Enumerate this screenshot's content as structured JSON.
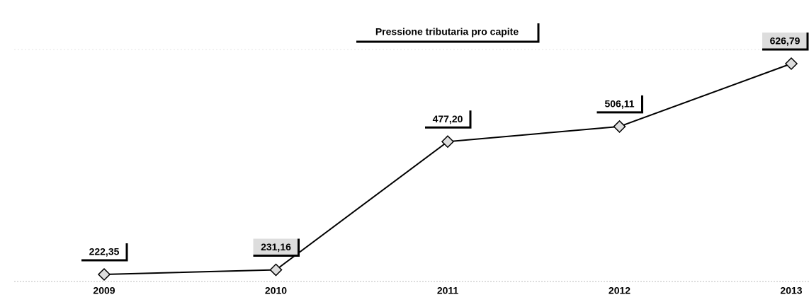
{
  "chart_data": {
    "type": "line",
    "title": "Pressione tributaria pro capite",
    "categories": [
      "2009",
      "2010",
      "2011",
      "2012",
      "2013"
    ],
    "values": [
      222.35,
      231.16,
      477.2,
      506.11,
      626.79
    ],
    "value_labels": [
      "222,35",
      "231,16",
      "477,20",
      "506,11",
      "626,79"
    ],
    "color": "#000000"
  }
}
